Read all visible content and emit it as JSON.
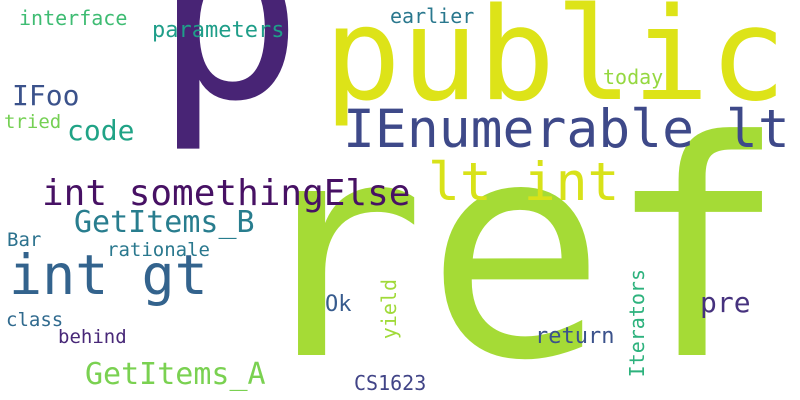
{
  "words": [
    {
      "id": "w-ref",
      "text": "ref",
      "color": "#a5db36"
    },
    {
      "id": "w-p",
      "text": "p",
      "color": "#482475"
    },
    {
      "id": "w-public",
      "text": "public",
      "color": "#dde318"
    },
    {
      "id": "w-ienumerable",
      "text": "IEnumerable lt",
      "color": "#3e4989"
    },
    {
      "id": "w-lt-int",
      "text": "lt int",
      "color": "#d8e219"
    },
    {
      "id": "w-int-somethingelse",
      "text": "int somethingElse",
      "color": "#471164"
    },
    {
      "id": "w-int-gt",
      "text": "int gt",
      "color": "#33638d"
    },
    {
      "id": "w-getitems-b",
      "text": "GetItems_B",
      "color": "#287d8e"
    },
    {
      "id": "w-getitems-a",
      "text": "GetItems_A",
      "color": "#7ad151"
    },
    {
      "id": "w-code",
      "text": "code",
      "color": "#20a386"
    },
    {
      "id": "w-ifoo",
      "text": "IFoo",
      "color": "#3b528b"
    },
    {
      "id": "w-interface",
      "text": "interface",
      "color": "#3fbc73"
    },
    {
      "id": "w-parameters",
      "text": "parameters",
      "color": "#1f9e89"
    },
    {
      "id": "w-earlier",
      "text": "earlier",
      "color": "#2a788e"
    },
    {
      "id": "w-today",
      "text": "today",
      "color": "#95d840"
    },
    {
      "id": "w-tried",
      "text": "tried",
      "color": "#75d054"
    },
    {
      "id": "w-bar",
      "text": "Bar",
      "color": "#2c728e"
    },
    {
      "id": "w-rationale",
      "text": "rationale",
      "color": "#2a788e"
    },
    {
      "id": "w-class",
      "text": "class",
      "color": "#306a8e"
    },
    {
      "id": "w-behind",
      "text": "behind",
      "color": "#482878"
    },
    {
      "id": "w-ok",
      "text": "Ok",
      "color": "#375b8d"
    },
    {
      "id": "w-yield",
      "text": "yield",
      "color": "#a0da39"
    },
    {
      "id": "w-iterators",
      "text": "Iterators",
      "color": "#2db27d"
    },
    {
      "id": "w-pre",
      "text": "pre",
      "color": "#46327e"
    },
    {
      "id": "w-return",
      "text": "return",
      "color": "#3b528b"
    },
    {
      "id": "w-cs1623",
      "text": "CS1623",
      "color": "#414487"
    }
  ]
}
